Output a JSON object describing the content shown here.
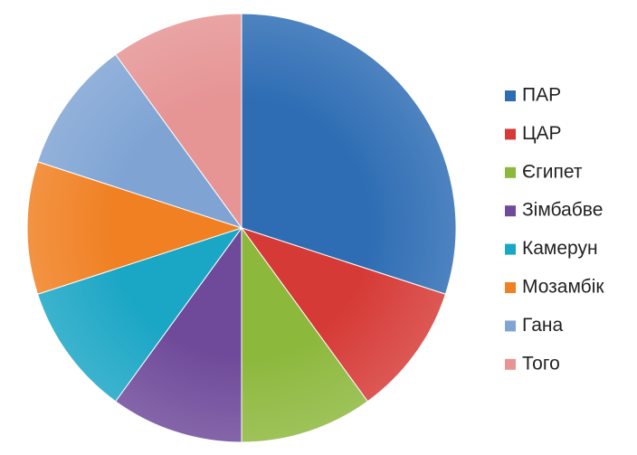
{
  "chart_data": {
    "type": "pie",
    "categories": [
      "ПАР",
      "ЦАР",
      "Єгипет",
      "Зімбабве",
      "Камерун",
      "Мозамбік",
      "Гана",
      "Того"
    ],
    "values": [
      30,
      10,
      10,
      10,
      10,
      10,
      10,
      10
    ],
    "colors": [
      "#2e6db4",
      "#d63a36",
      "#8cb83c",
      "#6f4a9a",
      "#1aa6c5",
      "#f08022",
      "#7fa4d4",
      "#e69494"
    ],
    "legend": "right"
  }
}
